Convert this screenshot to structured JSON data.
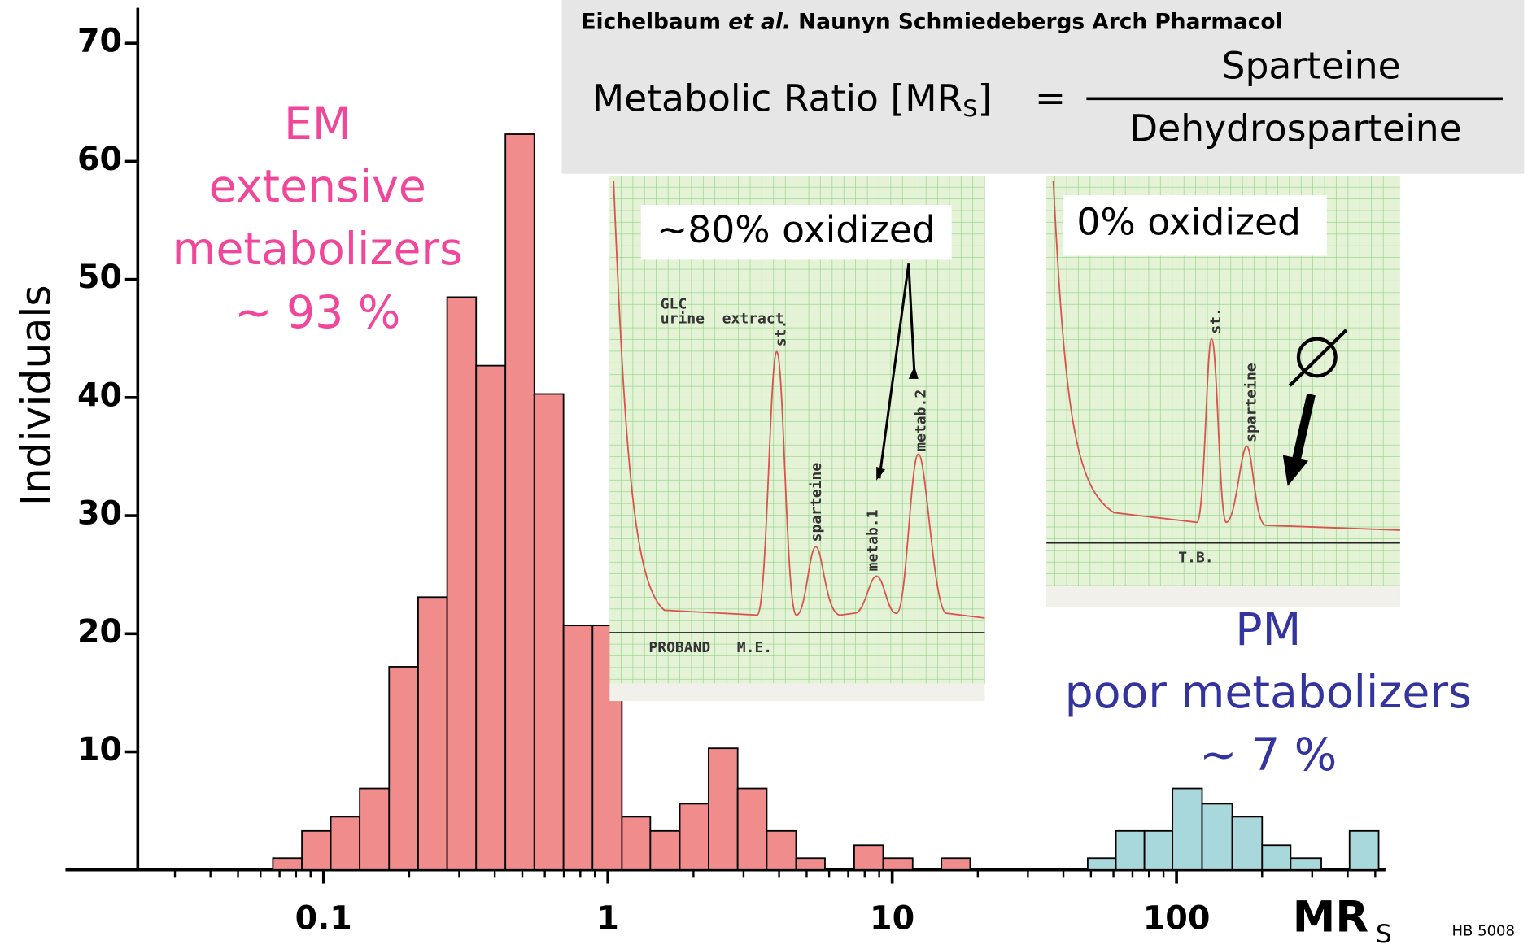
{
  "chart_data": {
    "type": "histogram",
    "y_label": "Individuals",
    "x_label": "MR",
    "x_label_sub": "S",
    "code": "HB 5008",
    "source": {
      "authors": "Eichelbaum",
      "etal": "et al.",
      "journal": "Naunyn Schmiedebergs Arch Pharmacol"
    },
    "formula": {
      "lhs": "Metabolic Ratio [MR",
      "lhs_sub": "S",
      "lhs_close": "]",
      "equals": "=",
      "numerator": "Sparteine",
      "denominator": "Dehydrosparteine"
    },
    "em_label": [
      "EM",
      "extensive",
      "metabolizers",
      "~ 93 %"
    ],
    "pm_label": [
      "PM",
      "poor metabolizers",
      "~ 7 %"
    ],
    "insets": [
      {
        "caption": "~80% oxidized",
        "labels": [
          "GLC",
          "urine  extract",
          "st.",
          "sparteine",
          "metab.1",
          "metab.2",
          "PROBAND   M.E."
        ]
      },
      {
        "caption": "0% oxidized",
        "labels": [
          "st.",
          "sparteine",
          "T.B."
        ]
      }
    ],
    "xscale": "log",
    "xlim": [
      0.0222,
      543
    ],
    "xticks": [
      0.1,
      1,
      10,
      100
    ],
    "xminorticks": [
      0.03,
      0.04,
      0.05,
      0.06,
      0.07,
      0.08,
      0.09,
      0.2,
      0.3,
      0.4,
      0.5,
      0.6,
      0.7,
      0.8,
      0.9,
      2,
      3,
      4,
      5,
      6,
      7,
      8,
      9,
      20,
      30,
      40,
      50,
      60,
      70,
      80,
      90,
      200,
      300,
      400,
      500
    ],
    "ylim": [
      0,
      73
    ],
    "yticks": [
      10,
      20,
      30,
      40,
      50,
      60,
      70
    ],
    "series": [
      {
        "color": "#f08c8c",
        "bins": [
          0.0663,
          0.0839,
          0.106,
          0.134,
          0.17,
          0.215,
          0.272,
          0.344,
          0.436,
          0.551,
          0.698,
          0.883,
          1.12,
          1.41,
          1.79,
          2.26,
          2.86,
          3.62,
          4.59,
          5.8,
          7.35,
          9.29,
          11.8,
          14.9,
          18.8
        ],
        "values": [
          1,
          3.3,
          4.5,
          6.9,
          17.2,
          23.1,
          48.5,
          42.7,
          62.3,
          40.3,
          20.7,
          20.7,
          4.5,
          3.3,
          5.6,
          10.3,
          6.9,
          3.3,
          1,
          0,
          2.1,
          1,
          0,
          1
        ]
      },
      {
        "color": "#a8d8dc",
        "bins": [
          48.7,
          61.2,
          77.1,
          96.8,
          123,
          157,
          200,
          252,
          323,
          406,
          514
        ],
        "values": [
          1,
          3.3,
          3.3,
          6.9,
          5.6,
          4.5,
          2.1,
          1,
          0,
          3.3
        ]
      }
    ]
  }
}
